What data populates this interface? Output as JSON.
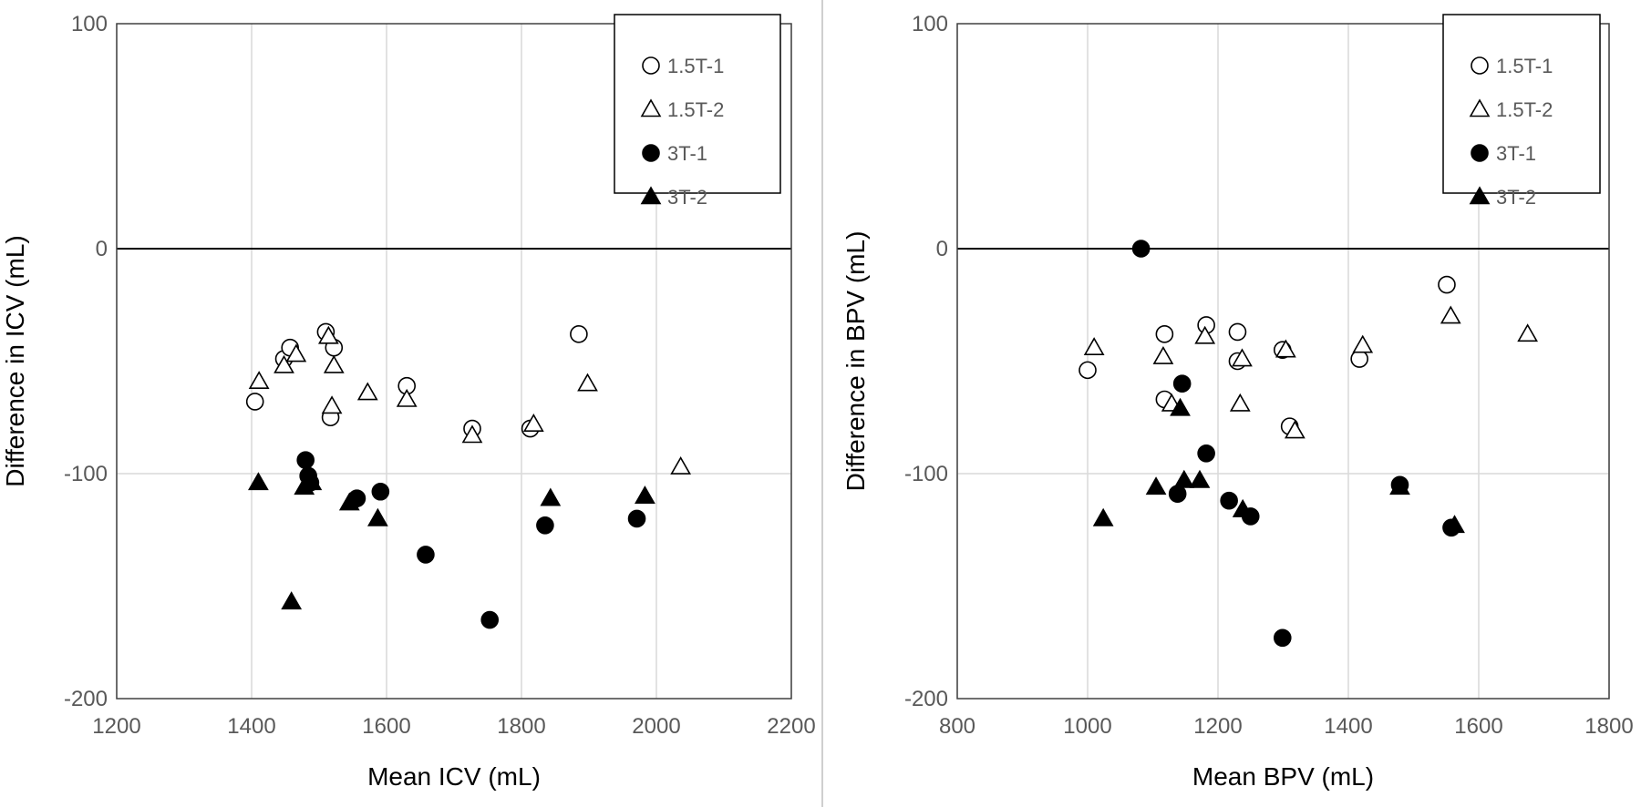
{
  "chart_data": [
    {
      "type": "scatter",
      "title": "",
      "xlabel": "Mean ICV (mL)",
      "ylabel": "Difference in ICV (mL)",
      "xlim": [
        1200,
        2200
      ],
      "ylim": [
        -200,
        100
      ],
      "xticks": [
        "1200",
        "1400",
        "1600",
        "1800",
        "2000",
        "2200"
      ],
      "yticks": [
        "100",
        "0",
        "-100",
        "-200"
      ],
      "grid": "vertical gridlines at x ticks, horizontal gridline at -100",
      "reference_line_y": 0,
      "legend_position": "top-right",
      "series": [
        {
          "name": "1.5T-1",
          "marker": "circle",
          "filled": false,
          "color": "#000000",
          "points": [
            [
              1405,
              -68
            ],
            [
              1448,
              -49
            ],
            [
              1457,
              -44
            ],
            [
              1510,
              -37
            ],
            [
              1517,
              -75
            ],
            [
              1522,
              -44
            ],
            [
              1630,
              -61
            ],
            [
              1727,
              -80
            ],
            [
              1813,
              -80
            ],
            [
              1885,
              -38
            ]
          ]
        },
        {
          "name": "1.5T-2",
          "marker": "triangle",
          "filled": false,
          "color": "#000000",
          "points": [
            [
              1411,
              -59
            ],
            [
              1448,
              -52
            ],
            [
              1466,
              -47
            ],
            [
              1514,
              -39
            ],
            [
              1519,
              -70
            ],
            [
              1522,
              -52
            ],
            [
              1572,
              -64
            ],
            [
              1630,
              -67
            ],
            [
              1727,
              -83
            ],
            [
              1818,
              -78
            ],
            [
              1898,
              -60
            ],
            [
              2036,
              -97
            ]
          ]
        },
        {
          "name": "3T-1",
          "marker": "circle",
          "filled": true,
          "color": "#000000",
          "points": [
            [
              1480,
              -94
            ],
            [
              1484,
              -101
            ],
            [
              1487,
              -104
            ],
            [
              1556,
              -111
            ],
            [
              1591,
              -108
            ],
            [
              1658,
              -136
            ],
            [
              1753,
              -165
            ],
            [
              1835,
              -123
            ],
            [
              1971,
              -120
            ]
          ]
        },
        {
          "name": "3T-2",
          "marker": "triangle",
          "filled": true,
          "color": "#000000",
          "points": [
            [
              1410,
              -104
            ],
            [
              1459,
              -157
            ],
            [
              1478,
              -106
            ],
            [
              1489,
              -104
            ],
            [
              1545,
              -113
            ],
            [
              1587,
              -120
            ],
            [
              1843,
              -111
            ],
            [
              1983,
              -110
            ]
          ]
        }
      ]
    },
    {
      "type": "scatter",
      "title": "",
      "xlabel": "Mean BPV (mL)",
      "ylabel": "Difference in BPV (mL)",
      "xlim": [
        800,
        1800
      ],
      "ylim": [
        -200,
        100
      ],
      "xticks": [
        "800",
        "1000",
        "1200",
        "1400",
        "1600",
        "1800"
      ],
      "yticks": [
        "100",
        "0",
        "-100",
        "-200"
      ],
      "grid": "vertical gridlines at x ticks, horizontal gridline at -100",
      "reference_line_y": 0,
      "legend_position": "top-right",
      "series": [
        {
          "name": "1.5T-1",
          "marker": "circle",
          "filled": false,
          "color": "#000000",
          "points": [
            [
              1000,
              -54
            ],
            [
              1118,
              -38
            ],
            [
              1118,
              -67
            ],
            [
              1182,
              -34
            ],
            [
              1230,
              -37
            ],
            [
              1230,
              -50
            ],
            [
              1299,
              -45
            ],
            [
              1310,
              -79
            ],
            [
              1417,
              -49
            ],
            [
              1551,
              -16
            ]
          ]
        },
        {
          "name": "1.5T-2",
          "marker": "triangle",
          "filled": false,
          "color": "#000000",
          "points": [
            [
              1010,
              -44
            ],
            [
              1116,
              -48
            ],
            [
              1129,
              -69
            ],
            [
              1180,
              -39
            ],
            [
              1234,
              -69
            ],
            [
              1237,
              -49
            ],
            [
              1304,
              -45
            ],
            [
              1318,
              -81
            ],
            [
              1422,
              -43
            ],
            [
              1557,
              -30
            ],
            [
              1675,
              -38
            ]
          ]
        },
        {
          "name": "3T-1",
          "marker": "circle",
          "filled": true,
          "color": "#000000",
          "points": [
            [
              1082,
              0
            ],
            [
              1138,
              -109
            ],
            [
              1145,
              -60
            ],
            [
              1182,
              -91
            ],
            [
              1217,
              -112
            ],
            [
              1250,
              -119
            ],
            [
              1299,
              -173
            ],
            [
              1479,
              -105
            ],
            [
              1558,
              -124
            ]
          ]
        },
        {
          "name": "3T-2",
          "marker": "triangle",
          "filled": true,
          "color": "#000000",
          "points": [
            [
              1024,
              -120
            ],
            [
              1105,
              -106
            ],
            [
              1142,
              -71
            ],
            [
              1148,
              -103
            ],
            [
              1172,
              -103
            ],
            [
              1238,
              -116
            ],
            [
              1479,
              -106
            ],
            [
              1563,
              -123
            ]
          ]
        }
      ]
    }
  ]
}
